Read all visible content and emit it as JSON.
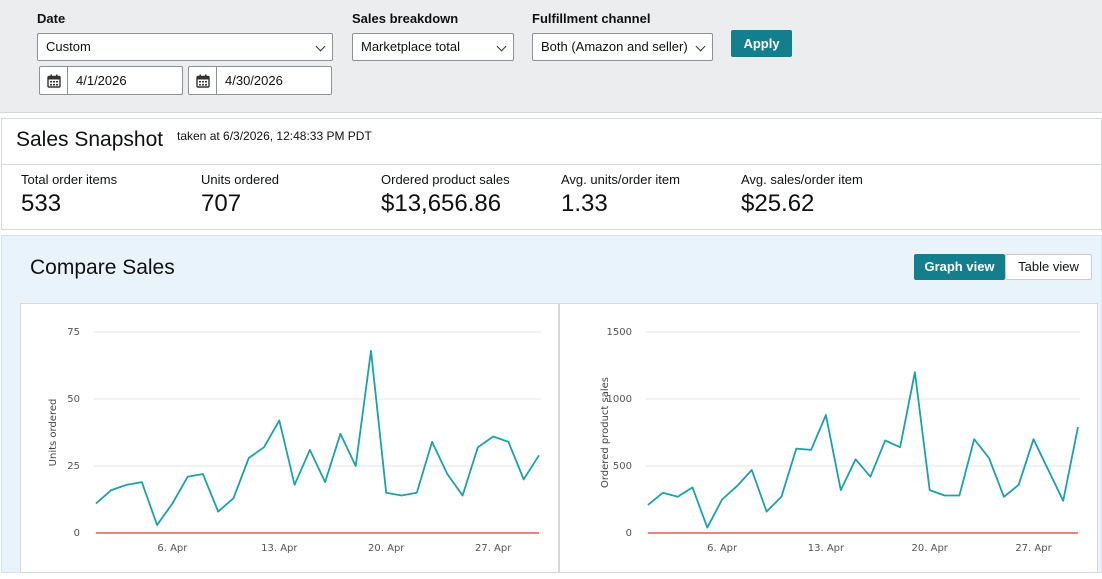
{
  "filters": {
    "date_label": "Date",
    "date_value": "Custom",
    "start_date": "4/1/2026",
    "end_date": "4/30/2026",
    "breakdown_label": "Sales breakdown",
    "breakdown_value": "Marketplace total",
    "channel_label": "Fulfillment channel",
    "channel_value": "Both (Amazon and seller)",
    "apply_label": "Apply"
  },
  "snapshot": {
    "title": "Sales Snapshot",
    "subtitle": "taken at 6/3/2026, 12:48:33 PM PDT",
    "metrics": [
      {
        "label": "Total order items",
        "value": "533"
      },
      {
        "label": "Units ordered",
        "value": "707"
      },
      {
        "label": "Ordered product sales",
        "value": "$13,656.86"
      },
      {
        "label": "Avg. units/order item",
        "value": "1.33"
      },
      {
        "label": "Avg. sales/order item",
        "value": "$25.62"
      }
    ]
  },
  "compare": {
    "title": "Compare Sales",
    "graph_view_label": "Graph view",
    "table_view_label": "Table view"
  },
  "colors": {
    "accent": "#137e8e",
    "line": "#1aa2a8",
    "baseline": "#e05a4f"
  },
  "chart_data": [
    {
      "type": "line",
      "ylabel": "Units ordered",
      "xlabel": "",
      "ylim": [
        0,
        75
      ],
      "yticks": [
        0,
        25,
        50,
        75
      ],
      "xticks": [
        {
          "day": 6,
          "label": "6. Apr"
        },
        {
          "day": 13,
          "label": "13. Apr"
        },
        {
          "day": 20,
          "label": "20. Apr"
        },
        {
          "day": 27,
          "label": "27. Apr"
        }
      ],
      "x_range": [
        1,
        30
      ],
      "x": [
        1,
        2,
        3,
        4,
        5,
        6,
        7,
        8,
        9,
        10,
        11,
        12,
        13,
        14,
        15,
        16,
        17,
        18,
        19,
        20,
        21,
        22,
        23,
        24,
        25,
        26,
        27,
        28,
        29,
        30
      ],
      "series": [
        {
          "values": [
            11,
            16,
            18,
            19,
            3,
            11,
            21,
            22,
            8,
            13,
            28,
            32,
            42,
            18,
            31,
            19,
            37,
            25,
            68,
            15,
            14,
            15,
            34,
            22,
            14,
            32,
            36,
            34,
            20,
            29
          ]
        },
        {
          "values": [
            0,
            0,
            0,
            0,
            0,
            0,
            0,
            0,
            0,
            0,
            0,
            0,
            0,
            0,
            0,
            0,
            0,
            0,
            0,
            0,
            0,
            0,
            0,
            0,
            0,
            0,
            0,
            0,
            0,
            0
          ]
        }
      ],
      "grid": true
    },
    {
      "type": "line",
      "ylabel": "Ordered product sales",
      "xlabel": "",
      "ylim": [
        0,
        1500
      ],
      "yticks": [
        0,
        500,
        1000,
        1500
      ],
      "xticks": [
        {
          "day": 6,
          "label": "6. Apr"
        },
        {
          "day": 13,
          "label": "13. Apr"
        },
        {
          "day": 20,
          "label": "20. Apr"
        },
        {
          "day": 27,
          "label": "27. Apr"
        }
      ],
      "x_range": [
        1,
        30
      ],
      "x": [
        1,
        2,
        3,
        4,
        5,
        6,
        7,
        8,
        9,
        10,
        11,
        12,
        13,
        14,
        15,
        16,
        17,
        18,
        19,
        20,
        21,
        22,
        23,
        24,
        25,
        26,
        27,
        28,
        29,
        30
      ],
      "series": [
        {
          "values": [
            210,
            300,
            270,
            340,
            40,
            250,
            350,
            470,
            160,
            270,
            630,
            620,
            880,
            320,
            550,
            420,
            690,
            640,
            1200,
            320,
            280,
            280,
            700,
            560,
            270,
            360,
            700,
            470,
            240,
            790
          ]
        },
        {
          "values": [
            0,
            0,
            0,
            0,
            0,
            0,
            0,
            0,
            0,
            0,
            0,
            0,
            0,
            0,
            0,
            0,
            0,
            0,
            0,
            0,
            0,
            0,
            0,
            0,
            0,
            0,
            0,
            0,
            0,
            0
          ]
        }
      ],
      "grid": true
    }
  ]
}
